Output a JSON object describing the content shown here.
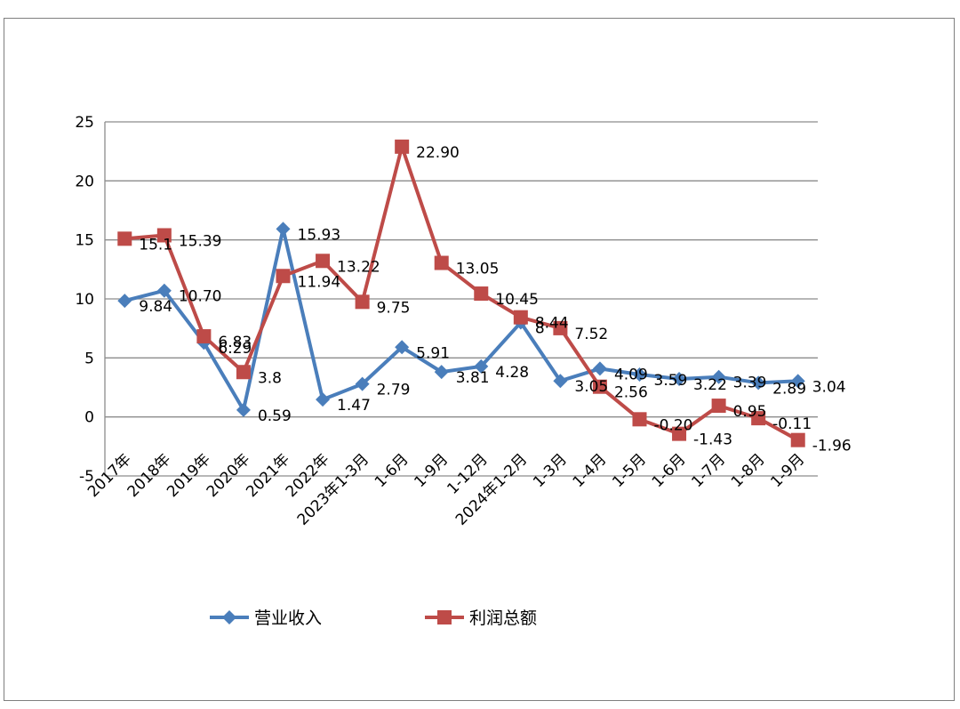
{
  "chart_data": {
    "type": "line",
    "categories": [
      "2017年",
      "2018年",
      "2019年",
      "2020年",
      "2021年",
      "2022年",
      "2023年1-3月",
      "1-6月",
      "1-9月",
      "1-12月",
      "2024年1-2月",
      "1-3月",
      "1-4月",
      "1-5月",
      "1-6月",
      "1-7月",
      "1-8月",
      "1-9月"
    ],
    "ylim": [
      -5,
      25
    ],
    "yticks": [
      "-5",
      "0",
      "5",
      "10",
      "15",
      "20",
      "25"
    ],
    "ytick_values": [
      -5,
      0,
      5,
      10,
      15,
      20,
      25
    ],
    "grid": true,
    "legend_position": "bottom",
    "series": [
      {
        "name": "营业收入",
        "color": "#4a7ebb",
        "marker": "diamond",
        "values": [
          9.84,
          10.7,
          6.29,
          0.59,
          15.93,
          1.47,
          2.79,
          5.91,
          3.81,
          4.28,
          8.0,
          3.05,
          4.09,
          3.59,
          3.22,
          3.39,
          2.89,
          3.04
        ],
        "labels": [
          "9.84",
          "10.70",
          "6.29",
          "0.59",
          "15.93",
          "1.47",
          "2.79",
          "5.91",
          "3.81",
          "4.28",
          "8",
          "3.05",
          "4.09",
          "3.59",
          "3.22",
          "3.39",
          "2.89",
          "3.04"
        ]
      },
      {
        "name": "利润总额",
        "color": "#be4b48",
        "marker": "square",
        "values": [
          15.1,
          15.39,
          6.83,
          3.8,
          11.94,
          13.22,
          9.75,
          22.9,
          13.05,
          10.45,
          8.44,
          7.52,
          2.56,
          -0.2,
          -1.43,
          0.95,
          -0.11,
          -1.96
        ],
        "labels": [
          "15.1",
          "15.39",
          "6.83",
          "3.8",
          "11.94",
          "13.22",
          "9.75",
          "22.90",
          "13.05",
          "10.45",
          "8.44",
          "7.52",
          "2.56",
          "-0.20",
          "-1.43",
          "0.95",
          "-0.11",
          "-1.96"
        ]
      }
    ]
  }
}
